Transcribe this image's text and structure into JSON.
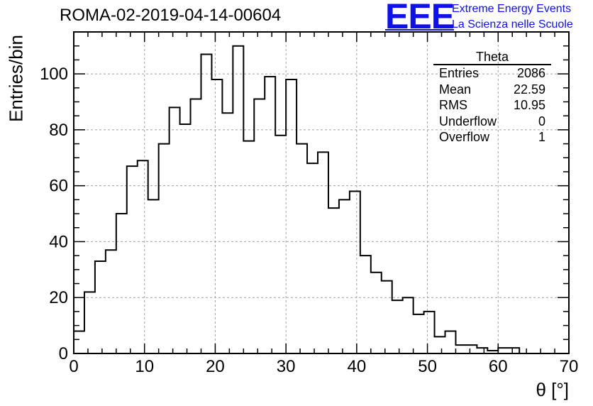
{
  "title": "ROMA-02-2019-04-14-00604",
  "logo": {
    "mark": "EEE",
    "line1": "Extreme Energy Events",
    "line2": "La Scienza nelle Scuole",
    "color": "#1010e8"
  },
  "stats": {
    "name": "Theta",
    "rows": [
      {
        "label": "Entries",
        "value": "2086"
      },
      {
        "label": "Mean",
        "value": "22.59"
      },
      {
        "label": "RMS",
        "value": "10.95"
      },
      {
        "label": "Underflow",
        "value": "0"
      },
      {
        "label": "Overflow",
        "value": "1"
      }
    ]
  },
  "chart_data": {
    "type": "bar",
    "style": "step-histogram",
    "xlabel": "θ [°]",
    "ylabel": "Entries/bin",
    "xlim": [
      0,
      70
    ],
    "ylim": [
      0,
      115
    ],
    "xticks": [
      0,
      10,
      20,
      30,
      40,
      50,
      60,
      70
    ],
    "yticks": [
      0,
      20,
      40,
      60,
      80,
      100
    ],
    "grid": true,
    "bin_width": 1.5,
    "bin_edges_start": 0,
    "values": [
      8,
      22,
      33,
      37,
      50,
      67,
      69,
      55,
      75,
      88,
      82,
      91,
      107,
      98,
      86,
      110,
      76,
      91,
      99,
      78,
      98,
      75,
      68,
      72,
      52,
      55,
      58,
      35,
      29,
      26,
      19,
      20,
      14,
      15,
      6,
      8,
      3,
      3,
      2,
      1,
      2,
      2,
      0,
      0,
      0,
      0,
      0
    ],
    "line_color": "#000000"
  }
}
